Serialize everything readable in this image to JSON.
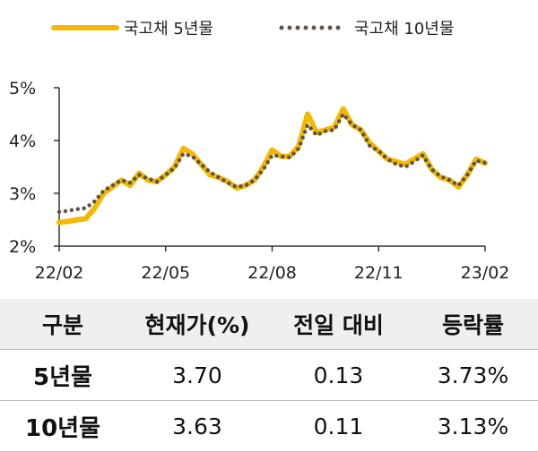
{
  "chart_data": {
    "type": "line",
    "title": "",
    "xlabel": "",
    "ylabel": "",
    "ylim": [
      2,
      5
    ],
    "yticks": [
      "2%",
      "3%",
      "4%",
      "5%"
    ],
    "ytick_values": [
      2,
      3,
      4,
      5
    ],
    "xticks": [
      "22/02",
      "22/05",
      "22/08",
      "22/11",
      "23/02"
    ],
    "legend_position": "top",
    "series": [
      {
        "name": "국고채 5년물",
        "color": "#F5B800",
        "style": "solid",
        "points": [
          [
            "22/02",
            2.45
          ],
          [
            "22/02 wk2",
            2.47
          ],
          [
            "22/02 wk3",
            2.5
          ],
          [
            "22/03",
            2.52
          ],
          [
            "22/03 wk2",
            2.72
          ],
          [
            "22/03 wk3",
            3.0
          ],
          [
            "22/03 wk4",
            3.12
          ],
          [
            "22/04",
            3.25
          ],
          [
            "22/04 wk2",
            3.15
          ],
          [
            "22/04 wk3",
            3.38
          ],
          [
            "22/04 wk4",
            3.25
          ],
          [
            "22/05",
            3.22
          ],
          [
            "22/05 wk2",
            3.35
          ],
          [
            "22/05 wk3",
            3.5
          ],
          [
            "22/05 wk4",
            3.85
          ],
          [
            "22/06",
            3.75
          ],
          [
            "22/06 wk2",
            3.55
          ],
          [
            "22/06 wk3",
            3.35
          ],
          [
            "22/06 wk4",
            3.3
          ],
          [
            "22/07",
            3.22
          ],
          [
            "22/07 wk2",
            3.1
          ],
          [
            "22/07 wk3",
            3.15
          ],
          [
            "22/07 wk4",
            3.25
          ],
          [
            "22/08",
            3.5
          ],
          [
            "22/08 wk2",
            3.82
          ],
          [
            "22/08 wk3",
            3.7
          ],
          [
            "22/08 wk4",
            3.7
          ],
          [
            "22/09",
            3.9
          ],
          [
            "22/09 wk2",
            4.5
          ],
          [
            "22/09 wk3",
            4.15
          ],
          [
            "22/09 wk4",
            4.2
          ],
          [
            "22/10",
            4.25
          ],
          [
            "22/10 wk2",
            4.6
          ],
          [
            "22/10 wk3",
            4.3
          ],
          [
            "22/10 wk4",
            4.2
          ],
          [
            "22/11",
            3.95
          ],
          [
            "22/11 wk2",
            3.8
          ],
          [
            "22/11 wk3",
            3.65
          ],
          [
            "22/11 wk4",
            3.6
          ],
          [
            "22/12",
            3.55
          ],
          [
            "22/12 wk2",
            3.65
          ],
          [
            "22/12 wk3",
            3.75
          ],
          [
            "22/12 wk4",
            3.45
          ],
          [
            "23/01",
            3.3
          ],
          [
            "23/01 wk2",
            3.25
          ],
          [
            "23/01 wk3",
            3.12
          ],
          [
            "23/01 wk4",
            3.35
          ],
          [
            "23/02 wk0",
            3.65
          ],
          [
            "23/02",
            3.57
          ]
        ]
      },
      {
        "name": "국고채 10년물",
        "color": "#5E5346",
        "style": "dotted",
        "points": [
          [
            "22/02",
            2.65
          ],
          [
            "22/02 wk2",
            2.67
          ],
          [
            "22/02 wk3",
            2.7
          ],
          [
            "22/03",
            2.72
          ],
          [
            "22/03 wk2",
            2.85
          ],
          [
            "22/03 wk3",
            3.05
          ],
          [
            "22/03 wk4",
            3.15
          ],
          [
            "22/04",
            3.25
          ],
          [
            "22/04 wk2",
            3.2
          ],
          [
            "22/04 wk3",
            3.35
          ],
          [
            "22/04 wk4",
            3.28
          ],
          [
            "22/05",
            3.22
          ],
          [
            "22/05 wk2",
            3.35
          ],
          [
            "22/05 wk3",
            3.48
          ],
          [
            "22/05 wk4",
            3.75
          ],
          [
            "22/06",
            3.7
          ],
          [
            "22/06 wk2",
            3.55
          ],
          [
            "22/06 wk3",
            3.4
          ],
          [
            "22/06 wk4",
            3.3
          ],
          [
            "22/07",
            3.2
          ],
          [
            "22/07 wk2",
            3.12
          ],
          [
            "22/07 wk3",
            3.15
          ],
          [
            "22/07 wk4",
            3.25
          ],
          [
            "22/08",
            3.45
          ],
          [
            "22/08 wk2",
            3.72
          ],
          [
            "22/08 wk3",
            3.7
          ],
          [
            "22/08 wk4",
            3.68
          ],
          [
            "22/09",
            3.85
          ],
          [
            "22/09 wk2",
            4.3
          ],
          [
            "22/09 wk3",
            4.1
          ],
          [
            "22/09 wk4",
            4.18
          ],
          [
            "22/10",
            4.2
          ],
          [
            "22/10 wk2",
            4.5
          ],
          [
            "22/10 wk3",
            4.3
          ],
          [
            "22/10 wk4",
            4.2
          ],
          [
            "22/11",
            3.9
          ],
          [
            "22/11 wk2",
            3.8
          ],
          [
            "22/11 wk3",
            3.65
          ],
          [
            "22/11 wk4",
            3.55
          ],
          [
            "22/12",
            3.5
          ],
          [
            "22/12 wk2",
            3.6
          ],
          [
            "22/12 wk3",
            3.72
          ],
          [
            "22/12 wk4",
            3.45
          ],
          [
            "23/01",
            3.32
          ],
          [
            "23/01 wk2",
            3.25
          ],
          [
            "23/01 wk3",
            3.15
          ],
          [
            "23/01 wk4",
            3.35
          ],
          [
            "23/02 wk0",
            3.62
          ],
          [
            "23/02",
            3.58
          ]
        ]
      }
    ]
  },
  "table": {
    "headers": [
      "구분",
      "현재가(%)",
      "전일 대비",
      "등락률"
    ],
    "rows": [
      {
        "name": "5년물",
        "price": "3.70",
        "change": "0.13",
        "rate": "3.73%"
      },
      {
        "name": "10년물",
        "price": "3.63",
        "change": "0.11",
        "rate": "3.13%"
      }
    ]
  }
}
